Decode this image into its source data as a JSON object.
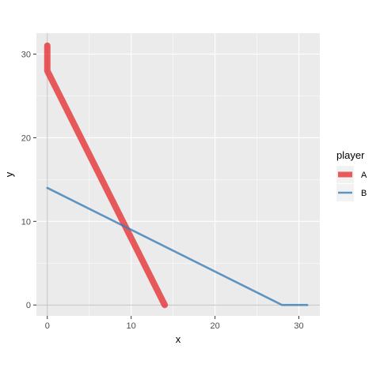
{
  "chart_data": {
    "type": "line",
    "title": "",
    "xlabel": "x",
    "ylabel": "y",
    "xlim": [
      -1.3,
      32.5
    ],
    "ylim": [
      -1.3,
      32.5
    ],
    "x_ticks": [
      0,
      10,
      20,
      30
    ],
    "y_ticks": [
      0,
      10,
      20,
      30
    ],
    "grid": true,
    "legend": {
      "title": "player",
      "position": "right"
    },
    "reference_lines": {
      "x0": true,
      "y0": true,
      "color": "#bfbfbf"
    },
    "series": [
      {
        "name": "A",
        "color": "#e41a1c",
        "opacity": 0.7,
        "line_weight": "thick",
        "points": [
          [
            0,
            31
          ],
          [
            0,
            28
          ],
          [
            14,
            0
          ]
        ]
      },
      {
        "name": "B",
        "color": "#377eb8",
        "opacity": 0.8,
        "line_weight": "normal",
        "points": [
          [
            0,
            14
          ],
          [
            28,
            0
          ],
          [
            31,
            0
          ]
        ]
      }
    ]
  }
}
